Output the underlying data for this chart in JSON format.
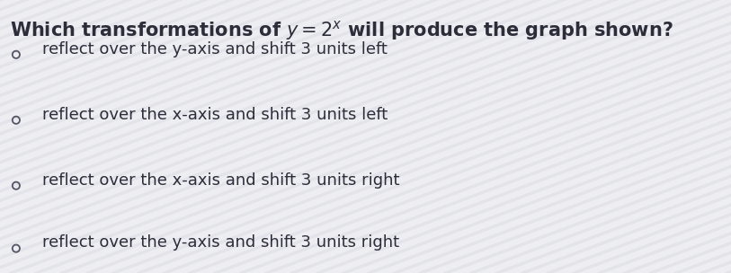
{
  "options": [
    "reflect over the y-axis and shift 3 units left",
    "reflect over the x-axis and shift 3 units left",
    "reflect over the x-axis and shift 3 units right",
    "reflect over the y-axis and shift 3 units right"
  ],
  "background_color": "#f0eff4",
  "stripe_color_light": "#e8e8ee",
  "stripe_color_dark": "#dcdce4",
  "text_color": "#2d2d3a",
  "title_fontsize": 15.0,
  "option_fontsize": 13.0,
  "fig_width": 8.13,
  "fig_height": 3.04
}
